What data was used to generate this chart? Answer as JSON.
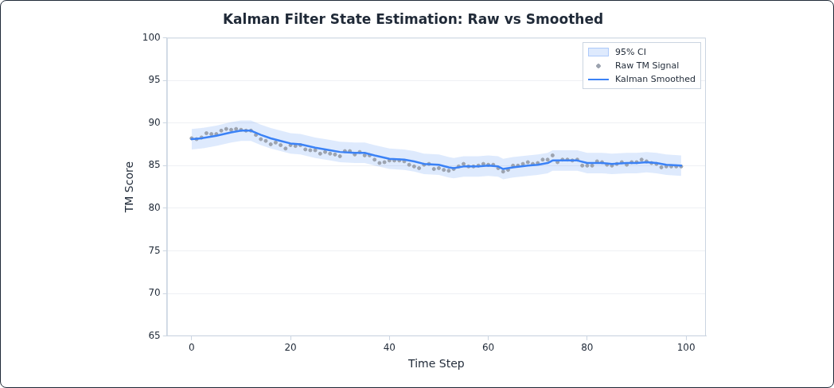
{
  "chart_data": {
    "type": "line",
    "title": "Kalman Filter State Estimation: Raw vs Smoothed",
    "xlabel": "Time Step",
    "ylabel": "TM Score",
    "xlim": [
      -5,
      104
    ],
    "xticks": [
      0,
      20,
      40,
      60,
      80,
      100
    ],
    "ylim": [
      65,
      100
    ],
    "yticks": [
      65,
      70,
      75,
      80,
      85,
      90,
      95,
      100
    ],
    "grid": "y",
    "legend": "top right",
    "annotations": [
      "95% CI"
    ],
    "series": [
      {
        "name": "Raw TM Signal",
        "type": "scatter",
        "marker": "circle",
        "color": "#9ca3af",
        "x": [
          0,
          1,
          2,
          3,
          4,
          5,
          6,
          7,
          8,
          9,
          10,
          11,
          12,
          13,
          14,
          15,
          16,
          17,
          18,
          19,
          20,
          21,
          22,
          23,
          24,
          25,
          26,
          27,
          28,
          29,
          30,
          31,
          32,
          33,
          34,
          35,
          36,
          37,
          38,
          39,
          40,
          41,
          42,
          43,
          44,
          45,
          46,
          47,
          48,
          49,
          50,
          51,
          52,
          53,
          54,
          55,
          56,
          57,
          58,
          59,
          60,
          61,
          62,
          63,
          64,
          65,
          66,
          67,
          68,
          69,
          70,
          71,
          72,
          73,
          74,
          75,
          76,
          77,
          78,
          79,
          80,
          81,
          82,
          83,
          84,
          85,
          86,
          87,
          88,
          89,
          90,
          91,
          92,
          93,
          94,
          95,
          96,
          97,
          98,
          99
        ],
        "values": [
          88.2,
          88.1,
          88.3,
          88.8,
          88.7,
          88.7,
          89.1,
          89.3,
          89.2,
          89.3,
          89.2,
          89.1,
          89.1,
          88.6,
          88.1,
          87.9,
          87.5,
          87.7,
          87.4,
          87.0,
          87.4,
          87.3,
          87.4,
          86.9,
          86.8,
          86.8,
          86.4,
          86.6,
          86.4,
          86.3,
          86.1,
          86.7,
          86.7,
          86.3,
          86.6,
          86.2,
          86.2,
          85.7,
          85.3,
          85.4,
          85.6,
          85.6,
          85.6,
          85.5,
          85.1,
          84.9,
          84.7,
          85.1,
          85.2,
          84.6,
          84.7,
          84.5,
          84.4,
          84.6,
          84.9,
          85.2,
          84.9,
          84.9,
          85.0,
          85.2,
          85.1,
          85.1,
          84.7,
          84.3,
          84.5,
          85.0,
          85.0,
          85.2,
          85.4,
          85.2,
          85.3,
          85.7,
          85.7,
          86.2,
          85.4,
          85.7,
          85.7,
          85.6,
          85.7,
          85.0,
          85.0,
          85.0,
          85.5,
          85.4,
          85.1,
          85.0,
          85.2,
          85.4,
          85.1,
          85.4,
          85.4,
          85.7,
          85.5,
          85.3,
          85.2,
          84.8,
          84.9,
          84.9,
          84.9,
          84.9
        ]
      },
      {
        "name": "Kalman Smoothed",
        "line_style": "solid",
        "color": "#3b82f6",
        "x": [
          0,
          2,
          5,
          8,
          10,
          12,
          14,
          16,
          18,
          20,
          22,
          25,
          28,
          30,
          33,
          35,
          37,
          40,
          43,
          45,
          47,
          50,
          52,
          53,
          55,
          58,
          60,
          62,
          63,
          65,
          68,
          70,
          72,
          73,
          75,
          78,
          80,
          83,
          85,
          88,
          90,
          92,
          94,
          96,
          99
        ],
        "values": [
          88.1,
          88.2,
          88.5,
          88.9,
          89.1,
          89.1,
          88.6,
          88.2,
          87.9,
          87.6,
          87.5,
          87.1,
          86.8,
          86.6,
          86.5,
          86.5,
          86.2,
          85.8,
          85.7,
          85.5,
          85.2,
          85.1,
          84.8,
          84.7,
          84.9,
          84.9,
          85.0,
          84.9,
          84.6,
          84.8,
          85.0,
          85.1,
          85.3,
          85.6,
          85.6,
          85.6,
          85.3,
          85.3,
          85.2,
          85.3,
          85.3,
          85.4,
          85.3,
          85.1,
          85.0
        ],
        "upper": [
          89.3,
          89.4,
          89.7,
          90.1,
          90.3,
          90.3,
          89.8,
          89.4,
          89.1,
          88.8,
          88.7,
          88.3,
          88.0,
          87.8,
          87.7,
          87.7,
          87.4,
          87.0,
          86.9,
          86.7,
          86.4,
          86.3,
          86.0,
          85.9,
          86.1,
          86.1,
          86.2,
          86.1,
          85.8,
          86.0,
          86.2,
          86.3,
          86.5,
          86.8,
          86.8,
          86.8,
          86.5,
          86.5,
          86.4,
          86.5,
          86.5,
          86.6,
          86.5,
          86.3,
          86.2
        ],
        "lower": [
          86.9,
          87.0,
          87.3,
          87.7,
          87.9,
          87.9,
          87.4,
          87.0,
          86.7,
          86.4,
          86.3,
          85.9,
          85.6,
          85.4,
          85.3,
          85.3,
          85.0,
          84.6,
          84.5,
          84.3,
          84.0,
          83.9,
          83.6,
          83.5,
          83.7,
          83.7,
          83.8,
          83.7,
          83.4,
          83.6,
          83.8,
          83.9,
          84.1,
          84.4,
          84.4,
          84.4,
          84.1,
          84.1,
          84.0,
          84.1,
          84.1,
          84.2,
          84.1,
          83.9,
          83.8
        ]
      }
    ]
  }
}
